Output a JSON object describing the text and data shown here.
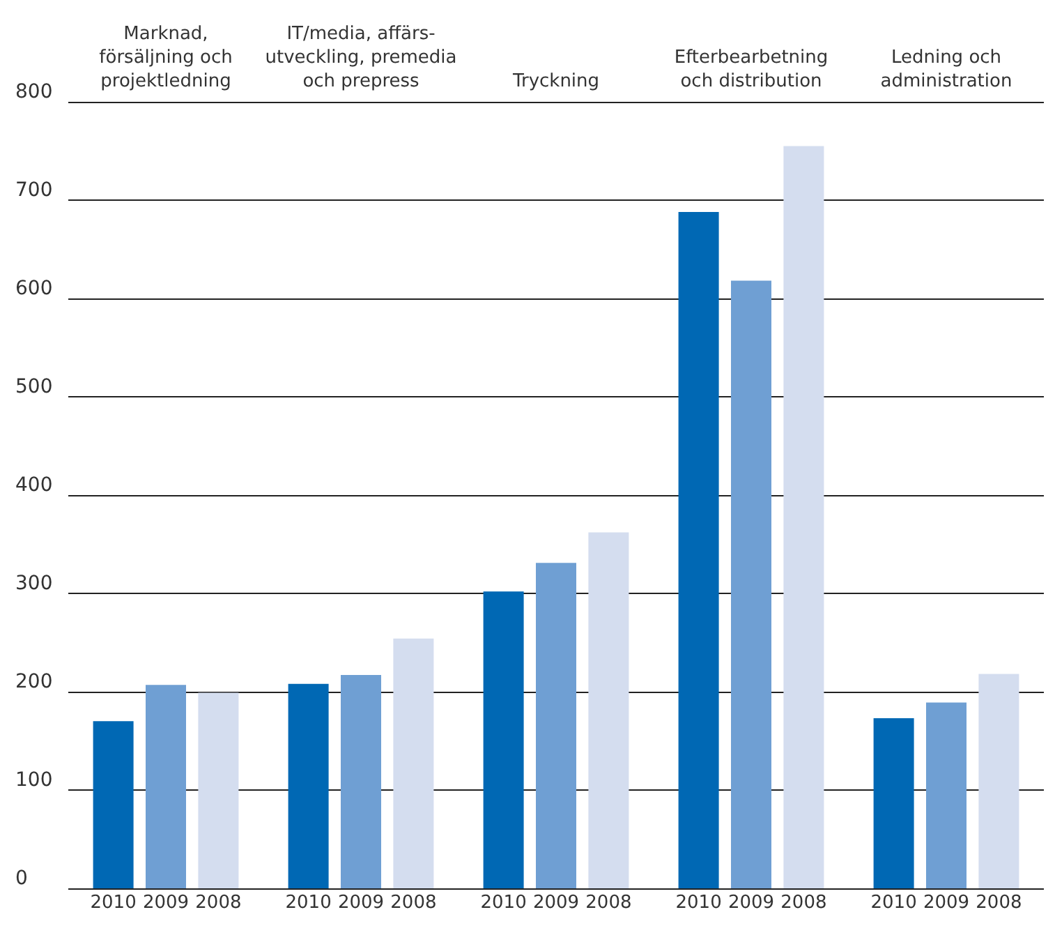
{
  "chart_data": {
    "type": "bar",
    "categories": [
      "Marknad,\nförsäljning och\nprojektledning",
      "IT/media, affärs-\nutveckling, premedia\noch prepress",
      "Tryckning",
      "Efterbearbetning\noch distribution",
      "Ledning och\nadministration"
    ],
    "series": [
      {
        "name": "2010",
        "color": "#0068b4",
        "values": [
          170,
          208,
          302,
          688,
          173
        ]
      },
      {
        "name": "2009",
        "color": "#6f9fd3",
        "values": [
          207,
          217,
          331,
          618,
          189
        ]
      },
      {
        "name": "2008",
        "color": "#d4ddef",
        "values": [
          199,
          254,
          362,
          755,
          218
        ]
      }
    ],
    "ylim": [
      0,
      800
    ],
    "yticks": [
      0,
      100,
      200,
      300,
      400,
      500,
      600,
      700,
      800
    ],
    "grid": "y",
    "legend": false
  }
}
